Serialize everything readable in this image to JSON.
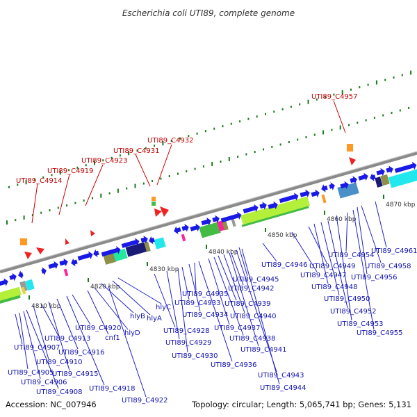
{
  "title": "Escherichia coli UTI89, complete genome",
  "footer": {
    "accession": "Accession: NC_007946",
    "summary": "Topology: circular; Length: 5,065,741 bp; Genes: 5,131"
  },
  "colors": {
    "gene_arrow": "#1a1ae6",
    "label_blue": "#1010b0",
    "label_red": "#c00000",
    "backbone": "#8a8a8a",
    "gc_tick": "#1a7a1a",
    "rna_marker": "#ee2222",
    "orange_marker": "#ff9922",
    "cyan_block": "#22e8ee",
    "lime_block": "#b4f03a",
    "green_block": "#44bb44",
    "navy_block": "#1a1a77",
    "magenta_block": "#ff2299",
    "olive_block": "#8f8f4a"
  },
  "kbp_labels": [
    "4810 kbp",
    "4820 kbp",
    "4830 kbp",
    "4840 kbp",
    "4850 kbp",
    "4860 kbp",
    "4870 kbp"
  ],
  "red_labels": [
    "UTI89_C4914",
    "UTI89_C4919",
    "UTI89_C4923",
    "UTI89_C4931",
    "UTI89_C4932",
    "UTI89_C4957"
  ],
  "blue_labels": [
    "UTI89_C4905",
    "UTI89_C4906",
    "UTI89_C4907",
    "UTI89_C4908",
    "UTI89_C4910",
    "UTI89_C4913",
    "UTI89_C4915",
    "UTI89_C4916",
    "UTI89_C4918",
    "UTI89_C4920",
    "cnf1",
    "hlyD",
    "hlyB",
    "hlyA",
    "hlyC",
    "UTI89_C4922",
    "UTI89_C4928",
    "UTI89_C4929",
    "UTI89_C4930",
    "UTI89_C4933",
    "UTI89_C4934",
    "UTI89_C4935",
    "UTI89_C4936",
    "UTI89_C4937",
    "UTI89_C4938",
    "UTI89_C4939",
    "UTI89_C4940",
    "UTI89_C4941",
    "UTI89_C4942",
    "UTI89_C4943",
    "UTI89_C4944",
    "UTI89_C4945",
    "UTI89_C4946",
    "UTI89_C4947",
    "UTI89_C4948",
    "UTI89_C4949",
    "UTI89_C4950",
    "UTI89_C4952",
    "UTI89_C4953",
    "UTI89_C4954",
    "UTI89_C4955",
    "UTI89_C4956",
    "UTI89_C4958",
    "UTI89_C4961"
  ]
}
